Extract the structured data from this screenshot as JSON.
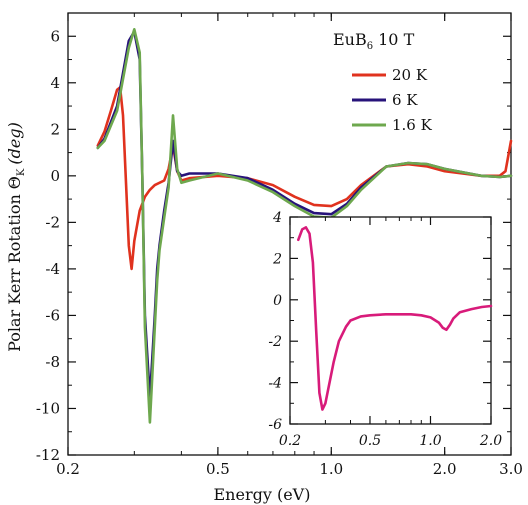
{
  "chart_data": [
    {
      "type": "line",
      "annotation": {
        "material": "EuB",
        "subscript": "6",
        "field": "10 T"
      },
      "xlabel": "Energy (eV)",
      "ylabel_main": "Polar Kerr Rotation",
      "ylabel_symbol": "Θ",
      "ylabel_sub": "K",
      "ylabel_unit": "(deg)",
      "xscale": "log",
      "xlim": [
        0.2,
        3.0
      ],
      "ylim": [
        -12,
        7
      ],
      "x_ticks": [
        0.2,
        0.5,
        1.0,
        2.0,
        3.0
      ],
      "x_tick_labels": [
        "0.2",
        "0.5",
        "1.0",
        "2.0",
        "3.0"
      ],
      "y_ticks": [
        -12,
        -10,
        -8,
        -6,
        -4,
        -2,
        0,
        2,
        4,
        6
      ],
      "y_tick_labels": [
        "-12",
        "-10",
        "-8",
        "-6",
        "-4",
        "-2",
        "0",
        "2",
        "4",
        "6"
      ],
      "legend_position": "top-right",
      "series": [
        {
          "name": "20 K",
          "color": "#e0321e",
          "x": [
            0.24,
            0.25,
            0.26,
            0.27,
            0.275,
            0.28,
            0.29,
            0.295,
            0.3,
            0.31,
            0.32,
            0.33,
            0.34,
            0.36,
            0.37,
            0.38,
            0.39,
            0.4,
            0.42,
            0.5,
            0.6,
            0.7,
            0.8,
            0.9,
            1.0,
            1.1,
            1.2,
            1.4,
            1.6,
            1.8,
            2.0,
            2.5,
            2.8,
            2.9,
            3.0
          ],
          "y": [
            1.3,
            1.9,
            2.8,
            3.7,
            3.8,
            2.6,
            -3.0,
            -4.0,
            -2.8,
            -1.5,
            -0.9,
            -0.6,
            -0.4,
            -0.2,
            0.3,
            1.3,
            0.2,
            -0.2,
            -0.1,
            0.0,
            -0.1,
            -0.4,
            -0.9,
            -1.25,
            -1.3,
            -1.0,
            -0.4,
            0.4,
            0.5,
            0.4,
            0.2,
            0.0,
            0.0,
            0.2,
            1.5
          ]
        },
        {
          "name": "6 K",
          "color": "#27137a",
          "x": [
            0.24,
            0.25,
            0.27,
            0.29,
            0.3,
            0.31,
            0.315,
            0.32,
            0.33,
            0.34,
            0.345,
            0.35,
            0.36,
            0.37,
            0.38,
            0.39,
            0.4,
            0.42,
            0.5,
            0.6,
            0.7,
            0.8,
            0.9,
            1.0,
            1.1,
            1.2,
            1.4,
            1.6,
            1.8,
            2.0,
            2.5,
            2.8,
            3.0
          ],
          "y": [
            1.2,
            1.6,
            3.0,
            5.8,
            6.2,
            5.0,
            0.0,
            -6.0,
            -9.6,
            -6.0,
            -4.0,
            -3.0,
            -1.5,
            -0.3,
            1.5,
            0.2,
            0.0,
            0.1,
            0.1,
            -0.1,
            -0.6,
            -1.2,
            -1.6,
            -1.65,
            -1.2,
            -0.5,
            0.4,
            0.55,
            0.5,
            0.3,
            0.0,
            -0.05,
            0.0
          ]
        },
        {
          "name": "1.6 K",
          "color": "#6ea84e",
          "x": [
            0.24,
            0.25,
            0.27,
            0.29,
            0.3,
            0.31,
            0.315,
            0.32,
            0.33,
            0.34,
            0.345,
            0.35,
            0.36,
            0.37,
            0.38,
            0.39,
            0.4,
            0.42,
            0.5,
            0.6,
            0.7,
            0.8,
            0.9,
            1.0,
            1.1,
            1.2,
            1.4,
            1.6,
            1.8,
            2.0,
            2.5,
            2.8,
            3.0
          ],
          "y": [
            1.2,
            1.5,
            2.8,
            5.5,
            6.3,
            5.3,
            0.0,
            -6.5,
            -10.6,
            -6.5,
            -4.5,
            -3.2,
            -1.8,
            -0.5,
            2.6,
            0.3,
            -0.3,
            -0.2,
            0.1,
            -0.2,
            -0.7,
            -1.3,
            -1.75,
            -1.8,
            -1.3,
            -0.6,
            0.4,
            0.55,
            0.5,
            0.3,
            0.0,
            -0.05,
            0.0
          ]
        }
      ]
    },
    {
      "type": "line",
      "position": "inset",
      "xscale": "log",
      "xlim": [
        0.2,
        2.0
      ],
      "ylim": [
        -6,
        4
      ],
      "x_ticks": [
        0.2,
        0.5,
        1.0,
        2.0
      ],
      "x_tick_labels": [
        "0.2",
        "0.5",
        "1.0",
        "2.0"
      ],
      "y_ticks": [
        -6,
        -4,
        -2,
        0,
        2,
        4
      ],
      "y_tick_labels": [
        "-6",
        "-4",
        "-2",
        "0",
        "2",
        "4"
      ],
      "series": [
        {
          "color": "#d81b7a",
          "x": [
            0.22,
            0.23,
            0.24,
            0.25,
            0.26,
            0.27,
            0.28,
            0.29,
            0.3,
            0.31,
            0.33,
            0.35,
            0.38,
            0.4,
            0.45,
            0.5,
            0.6,
            0.7,
            0.8,
            0.9,
            1.0,
            1.1,
            1.15,
            1.2,
            1.25,
            1.3,
            1.4,
            1.6,
            1.8,
            2.0
          ],
          "y": [
            2.9,
            3.4,
            3.5,
            3.2,
            1.8,
            -1.5,
            -4.5,
            -5.3,
            -5.0,
            -4.3,
            -3.0,
            -2.0,
            -1.3,
            -1.0,
            -0.8,
            -0.75,
            -0.7,
            -0.7,
            -0.7,
            -0.75,
            -0.85,
            -1.1,
            -1.35,
            -1.45,
            -1.2,
            -0.9,
            -0.6,
            -0.45,
            -0.35,
            -0.3
          ]
        }
      ]
    }
  ]
}
